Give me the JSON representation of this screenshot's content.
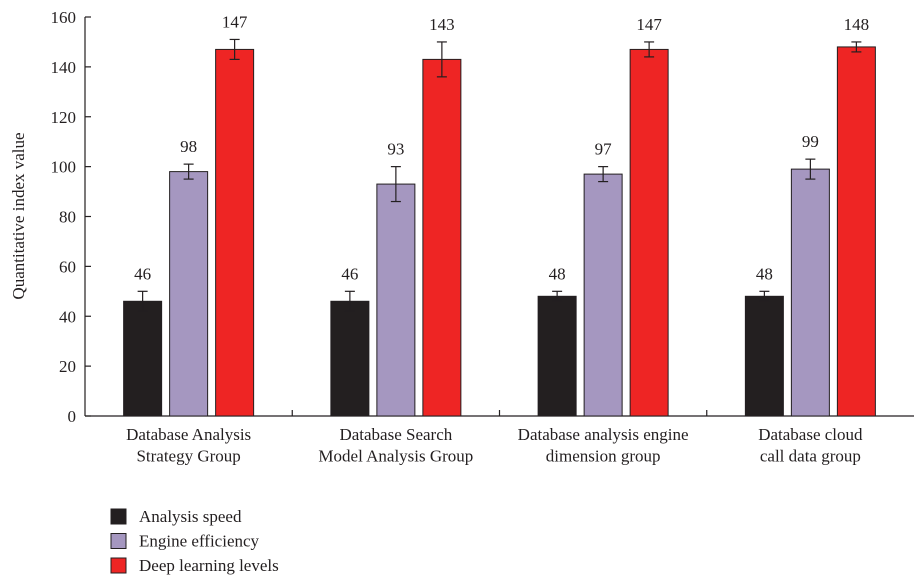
{
  "chart_data": {
    "type": "bar",
    "y_label": "Quantitative index value",
    "categories": [
      "Database Analysis\nStrategy Group",
      "Database Search\nModel Analysis Group",
      "Database analysis engine\ndimension group",
      "Database cloud\ncall data group"
    ],
    "series": [
      {
        "name": "Analysis speed",
        "color": "#231f20",
        "values": [
          46,
          46,
          48,
          48
        ],
        "errors": [
          4,
          4,
          2,
          2
        ]
      },
      {
        "name": "Engine efficiency",
        "color": "#a597c0",
        "values": [
          98,
          93,
          97,
          99
        ],
        "errors": [
          3,
          7,
          3,
          4
        ]
      },
      {
        "name": "Deep learning levels",
        "color": "#ee2524",
        "values": [
          147,
          143,
          147,
          148
        ],
        "errors": [
          4,
          7,
          3,
          2
        ]
      }
    ],
    "ylim": [
      0,
      160
    ],
    "yticks": [
      0,
      20,
      40,
      60,
      80,
      100,
      120,
      140,
      160
    ]
  }
}
